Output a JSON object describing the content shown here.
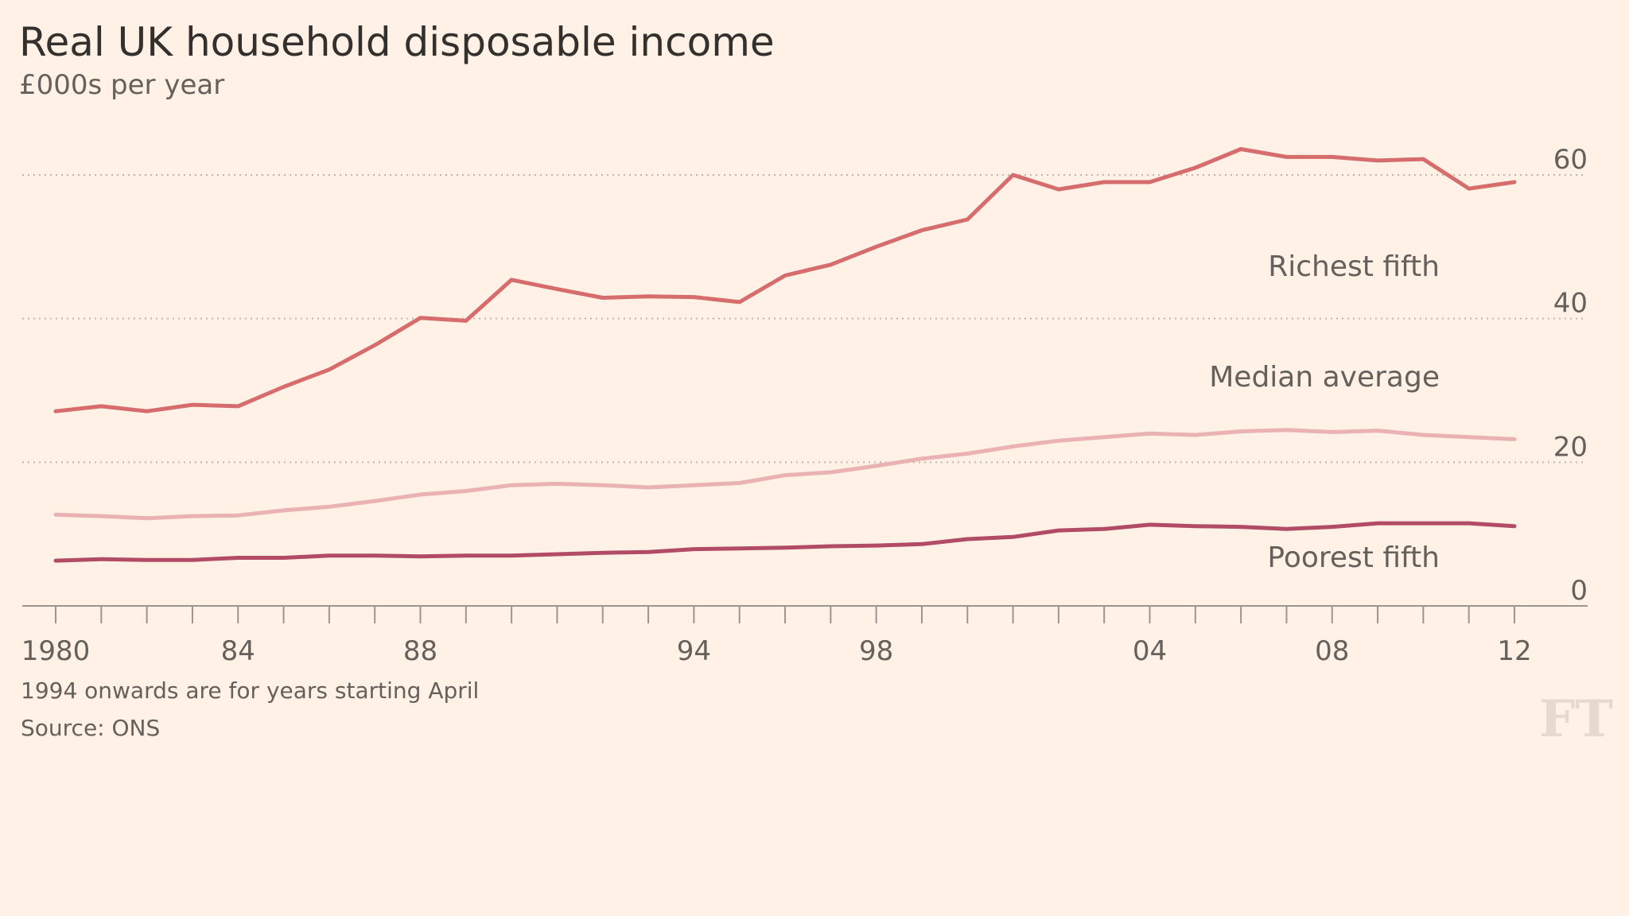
{
  "chart_data": {
    "type": "line",
    "title": "Real UK household disposable income",
    "subtitle": "£000s per year",
    "xlabel": "",
    "ylabel": "",
    "xlim": [
      1980,
      2012
    ],
    "ylim": [
      0,
      60
    ],
    "x": [
      1980,
      1981,
      1982,
      1983,
      1984,
      1985,
      1986,
      1987,
      1988,
      1989,
      1990,
      1991,
      1992,
      1993,
      1994,
      1995,
      1996,
      1997,
      1998,
      1999,
      2000,
      2001,
      2002,
      2003,
      2004,
      2005,
      2006,
      2007,
      2008,
      2009,
      2010,
      2011,
      2012
    ],
    "x_tick_values": [
      1980,
      1984,
      1988,
      1994,
      1998,
      2004,
      2008,
      2012
    ],
    "x_tick_labels": [
      "1980",
      "84",
      "88",
      "94",
      "98",
      "04",
      "08",
      "12"
    ],
    "y_tick_values": [
      0,
      20,
      40,
      60
    ],
    "y_tick_labels": [
      "0",
      "20",
      "40",
      "60"
    ],
    "series": [
      {
        "name": "Richest fifth",
        "color": "#d66c6c",
        "values": [
          27.1,
          27.8,
          27.1,
          28.0,
          27.8,
          30.5,
          32.9,
          36.3,
          40.1,
          39.7,
          45.4,
          44.1,
          42.9,
          43.1,
          43.0,
          42.3,
          46.0,
          47.5,
          50.0,
          52.3,
          53.8,
          60.0,
          58.0,
          59.0,
          59.0,
          61.0,
          63.6,
          62.5,
          62.5,
          62.0,
          62.2,
          58.1,
          59.0
        ]
      },
      {
        "name": "Median average",
        "color": "#eab2b2",
        "values": [
          12.7,
          12.5,
          12.2,
          12.5,
          12.6,
          13.3,
          13.8,
          14.6,
          15.5,
          16.0,
          16.8,
          17.0,
          16.8,
          16.5,
          16.8,
          17.1,
          18.2,
          18.6,
          19.5,
          20.5,
          21.2,
          22.2,
          23.0,
          23.5,
          24.0,
          23.8,
          24.3,
          24.5,
          24.2,
          24.4,
          23.8,
          23.5,
          23.2
        ]
      },
      {
        "name": "Poorest fifth",
        "color": "#b24c66",
        "values": [
          6.3,
          6.5,
          6.4,
          6.4,
          6.7,
          6.7,
          7.0,
          7.0,
          6.9,
          7.0,
          7.0,
          7.2,
          7.4,
          7.5,
          7.9,
          8.0,
          8.1,
          8.3,
          8.4,
          8.6,
          9.3,
          9.6,
          10.5,
          10.7,
          11.3,
          11.1,
          11.0,
          10.7,
          11.0,
          11.5,
          11.5,
          11.5,
          11.1
        ]
      }
    ],
    "series_labels": [
      "Richest fifth",
      "Median average",
      "Poorest fifth"
    ],
    "notes": [
      "1994 onwards are for years starting April",
      "Source: ONS"
    ],
    "logo_text": "FT",
    "grid": true
  }
}
